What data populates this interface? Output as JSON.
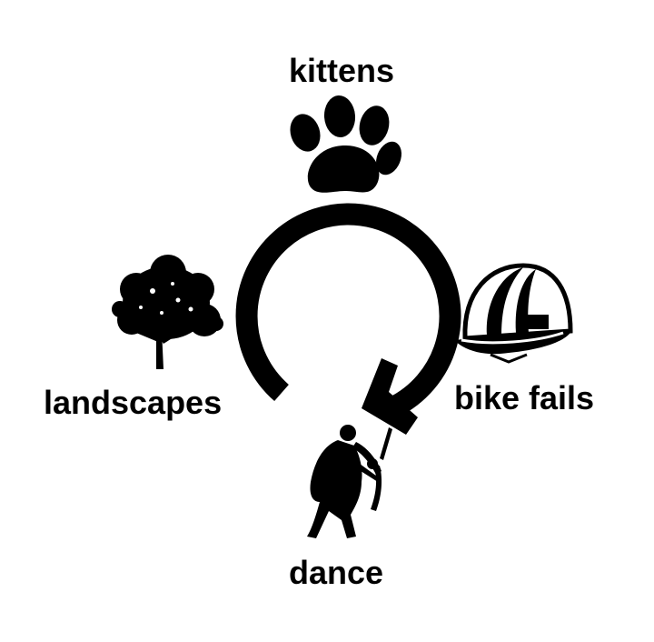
{
  "diagram": {
    "nodes": [
      {
        "id": "top",
        "label": "kittens",
        "icon": "paw-print-icon"
      },
      {
        "id": "right",
        "label": "bike fails",
        "icon": "helmet-icon"
      },
      {
        "id": "bottom",
        "label": "dance",
        "icon": "dancers-icon"
      },
      {
        "id": "left",
        "label": "landscapes",
        "icon": "tree-icon"
      }
    ],
    "cycle_arrow": {
      "direction": "clockwise",
      "color": "#000000"
    }
  }
}
